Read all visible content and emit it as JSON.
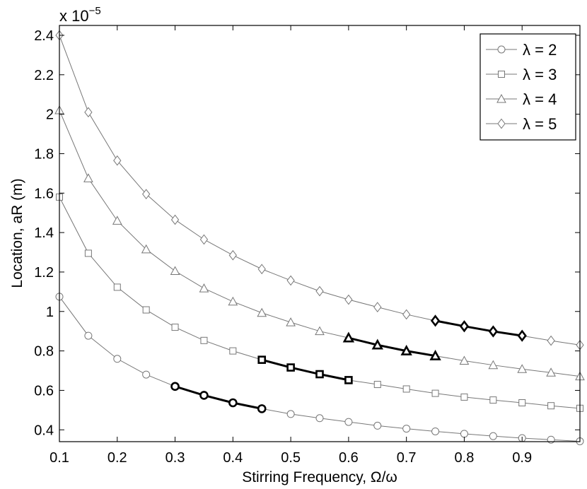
{
  "chart_data": {
    "type": "line",
    "xlabel": "Stirring Frequency, Ω/ω",
    "ylabel": "Location, aR (m)",
    "y_multiplier_label": {
      "base": "x 10",
      "exponent": "−5"
    },
    "xlim": [
      0.1,
      1.0
    ],
    "ylim": [
      0.34,
      2.45
    ],
    "x_ticks": [
      0.1,
      0.2,
      0.3,
      0.4,
      0.5,
      0.6,
      0.7,
      0.8,
      0.9
    ],
    "x_tick_labels": [
      "0.1",
      "0.2",
      "0.3",
      "0.4",
      "0.5",
      "0.6",
      "0.7",
      "0.8",
      "0.9"
    ],
    "y_ticks": [
      0.4,
      0.6,
      0.8,
      1.0,
      1.2,
      1.4,
      1.6,
      1.8,
      2.0,
      2.2,
      2.4
    ],
    "y_tick_labels": [
      "0.4",
      "0.6",
      "0.8",
      "1",
      "1.2",
      "1.4",
      "1.6",
      "1.8",
      "2",
      "2.2",
      "2.4"
    ],
    "grid": false,
    "legend_position": "top-right",
    "x": [
      0.1,
      0.15,
      0.2,
      0.25,
      0.3,
      0.35,
      0.4,
      0.45,
      0.5,
      0.55,
      0.6,
      0.65,
      0.7,
      0.75,
      0.8,
      0.85,
      0.9,
      0.95,
      1.0
    ],
    "series": [
      {
        "name": "λ = 2",
        "marker": "circle",
        "values": [
          1.075,
          0.877,
          0.76,
          0.68,
          0.62,
          0.575,
          0.537,
          0.507,
          0.48,
          0.459,
          0.44,
          0.421,
          0.406,
          0.392,
          0.38,
          0.368,
          0.358,
          0.35,
          0.342
        ],
        "highlight_x": [
          0.3,
          0.45
        ]
      },
      {
        "name": "λ = 3",
        "marker": "square",
        "values": [
          1.58,
          1.295,
          1.123,
          1.008,
          0.92,
          0.853,
          0.8,
          0.755,
          0.716,
          0.682,
          0.652,
          0.63,
          0.607,
          0.585,
          0.566,
          0.551,
          0.537,
          0.522,
          0.509
        ],
        "highlight_x": [
          0.45,
          0.6
        ]
      },
      {
        "name": "λ = 4",
        "marker": "triangle",
        "values": [
          2.02,
          1.675,
          1.46,
          1.315,
          1.205,
          1.117,
          1.05,
          0.993,
          0.945,
          0.9,
          0.866,
          0.83,
          0.8,
          0.775,
          0.75,
          0.728,
          0.708,
          0.69,
          0.671
        ],
        "highlight_x": [
          0.6,
          0.75
        ]
      },
      {
        "name": "λ = 5",
        "marker": "diamond",
        "values": [
          2.4,
          2.01,
          1.765,
          1.595,
          1.465,
          1.365,
          1.285,
          1.215,
          1.157,
          1.103,
          1.06,
          1.022,
          0.985,
          0.953,
          0.925,
          0.899,
          0.877,
          0.852,
          0.83
        ],
        "highlight_x": [
          0.75,
          0.9
        ]
      }
    ],
    "colors": {
      "thin_line": "#777777",
      "thick_line": "#000000",
      "background": "#ffffff"
    }
  }
}
